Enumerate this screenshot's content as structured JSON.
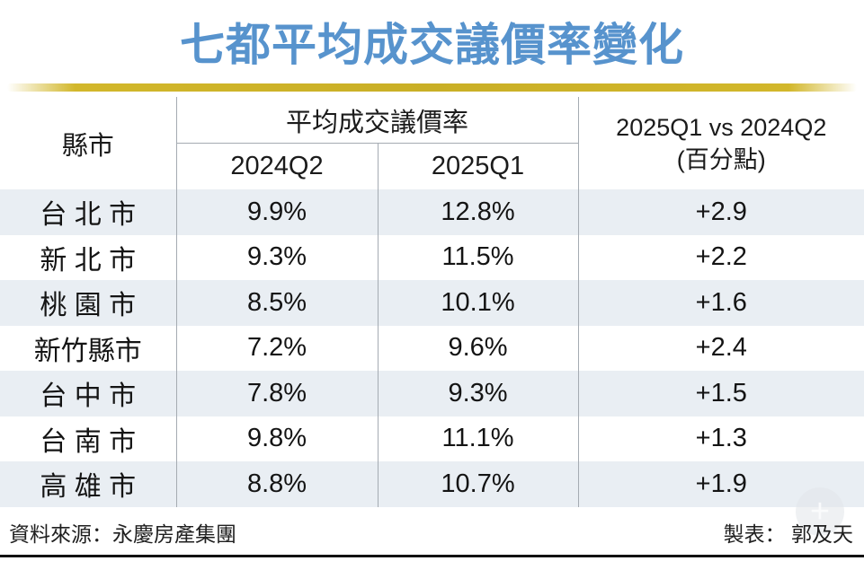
{
  "title": "七都平均成交議價率變化",
  "table": {
    "headers": {
      "city": "縣市",
      "group": "平均成交議價率",
      "q2024": "2024Q2",
      "q2025": "2025Q1",
      "diff_line1": "2025Q1 vs 2024Q2",
      "diff_line2": "(百分點)"
    },
    "rows": [
      {
        "city": "台 北 市",
        "q2024": "9.9%",
        "q2025": "12.8%",
        "diff": "+2.9"
      },
      {
        "city": "新 北 市",
        "q2024": "9.3%",
        "q2025": "11.5%",
        "diff": "+2.2"
      },
      {
        "city": "桃 園 市",
        "q2024": "8.5%",
        "q2025": "10.1%",
        "diff": "+1.6"
      },
      {
        "city": "新竹縣市",
        "q2024": "7.2%",
        "q2025": "9.6%",
        "diff": "+2.4"
      },
      {
        "city": "台 中 市",
        "q2024": "7.8%",
        "q2025": "9.3%",
        "diff": "+1.5"
      },
      {
        "city": "台 南 市",
        "q2024": "9.8%",
        "q2025": "11.1%",
        "diff": "+1.3"
      },
      {
        "city": "高 雄 市",
        "q2024": "8.8%",
        "q2025": "10.7%",
        "diff": "+1.9"
      }
    ]
  },
  "footer": {
    "source": "資料來源：永慶房產集團",
    "credit": "製表： 郭及天"
  },
  "watermark_glyph": "+",
  "colors": {
    "title_blue": "#5793cd",
    "rule_yellow": "#d2b72b",
    "row_shade": "#e9eef3",
    "grid_line": "#a5abb2"
  },
  "chart_data": {
    "type": "table",
    "title": "七都平均成交議價率變化",
    "categories": [
      "台北市",
      "新北市",
      "桃園市",
      "新竹縣市",
      "台中市",
      "台南市",
      "高雄市"
    ],
    "series": [
      {
        "name": "平均成交議價率 2024Q2 (%)",
        "values": [
          9.9,
          9.3,
          8.5,
          7.2,
          7.8,
          9.8,
          8.8
        ]
      },
      {
        "name": "平均成交議價率 2025Q1 (%)",
        "values": [
          12.8,
          11.5,
          10.1,
          9.6,
          9.3,
          11.1,
          10.7
        ]
      },
      {
        "name": "2025Q1 vs 2024Q2 (百分點)",
        "values": [
          2.9,
          2.2,
          1.6,
          2.4,
          1.5,
          1.3,
          1.9
        ]
      }
    ],
    "columns": [
      "縣市",
      "2024Q2",
      "2025Q1",
      "2025Q1 vs 2024Q2 (百分點)"
    ],
    "source": "永慶房產集團",
    "credit": "郭及天"
  }
}
